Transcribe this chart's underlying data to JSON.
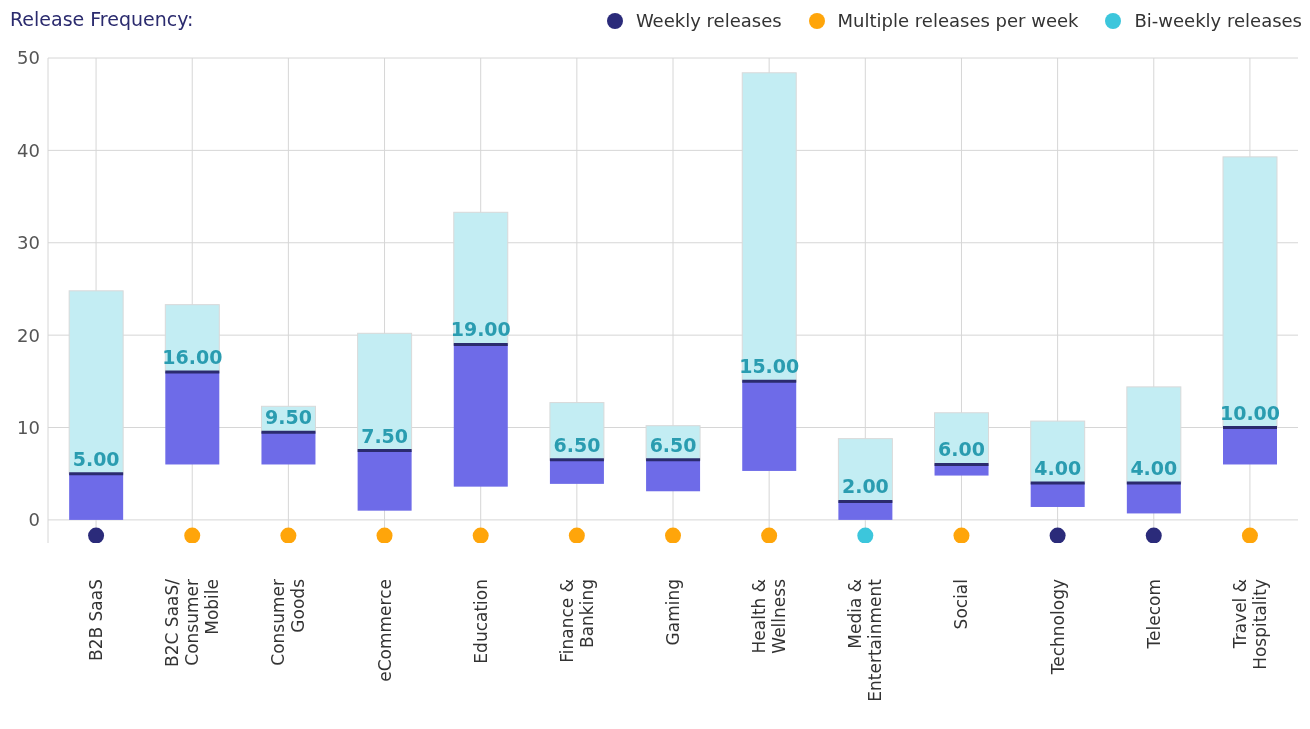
{
  "chart_data": {
    "type": "box",
    "legend_title": "Release Frequency:",
    "categories": [
      "B2B SaaS",
      "B2C SaaS/ Consumer Mobile",
      "Consumer Goods",
      "eCommerce",
      "Education",
      "Finance & Banking",
      "Gaming",
      "Health & Wellness",
      "Media & Entertainment",
      "Social",
      "Technology",
      "Telecom",
      "Travel & Hospitality"
    ],
    "ylim": [
      -2.5,
      50
    ],
    "yticks": [
      0,
      10,
      20,
      30,
      40,
      50
    ],
    "grid": true,
    "legend": "top right",
    "series": [
      {
        "color": "#6e6be8",
        "value_labels": [
          "5.00",
          "16.00",
          "9.50",
          "7.50",
          "19.00",
          "6.50",
          "6.50",
          "15.00",
          "2.00",
          "6.00",
          "4.00",
          "4.00",
          "10.00"
        ],
        "boxes": [
          {
            "low": 0,
            "q1": 0,
            "median": 5,
            "q3": 24.8,
            "high": 24.8
          },
          {
            "low": 6,
            "q1": 6,
            "median": 16,
            "q3": 23.3,
            "high": 23.3
          },
          {
            "low": 6,
            "q1": 6,
            "median": 9.5,
            "q3": 12.3,
            "high": 12.3
          },
          {
            "low": 1,
            "q1": 1,
            "median": 7.5,
            "q3": 20.2,
            "high": 20.2
          },
          {
            "low": 3.6,
            "q1": 3.6,
            "median": 19,
            "q3": 33.3,
            "high": 33.3
          },
          {
            "low": 3.9,
            "q1": 3.9,
            "median": 6.5,
            "q3": 12.7,
            "high": 12.7
          },
          {
            "low": 3.1,
            "q1": 3.1,
            "median": 6.5,
            "q3": 10.2,
            "high": 10.2
          },
          {
            "low": 5.3,
            "q1": 5.3,
            "median": 15,
            "q3": 48.4,
            "high": 48.4
          },
          {
            "low": 0,
            "q1": 0,
            "median": 2,
            "q3": 8.8,
            "high": 8.8
          },
          {
            "low": 4.8,
            "q1": 4.8,
            "median": 6,
            "q3": 11.6,
            "high": 11.6
          },
          {
            "low": 1.4,
            "q1": 1.4,
            "median": 4,
            "q3": 10.7,
            "high": 10.7
          },
          {
            "low": 0.7,
            "q1": 0.7,
            "median": 4,
            "q3": 14.4,
            "high": 14.4
          },
          {
            "low": 6,
            "q1": 6,
            "median": 10,
            "q3": 39.3,
            "high": 39.3
          }
        ]
      },
      {
        "type": "scatter",
        "name": "Weekly releases",
        "color": "#2b2b7a",
        "x": [
          "B2B SaaS",
          "Technology",
          "Telecom"
        ],
        "values": [
          -1.7,
          -1.7,
          -1.7
        ]
      },
      {
        "type": "scatter",
        "name": "Multiple releases per week",
        "color": "#ffa50a",
        "x": [
          "B2C SaaS/ Consumer Mobile",
          "Consumer Goods",
          "eCommerce",
          "Education",
          "Finance & Banking",
          "Gaming",
          "Health & Wellness",
          "Social",
          "Travel & Hospitality"
        ],
        "values": [
          -1.7,
          -1.7,
          -1.7,
          -1.7,
          -1.7,
          -1.7,
          -1.7,
          -1.7,
          -1.7
        ]
      },
      {
        "type": "scatter",
        "name": "Bi-weekly releases",
        "color": "#3cc6dc",
        "x": [
          "Media & Entertainment"
        ],
        "values": [
          -1.7
        ]
      }
    ]
  }
}
